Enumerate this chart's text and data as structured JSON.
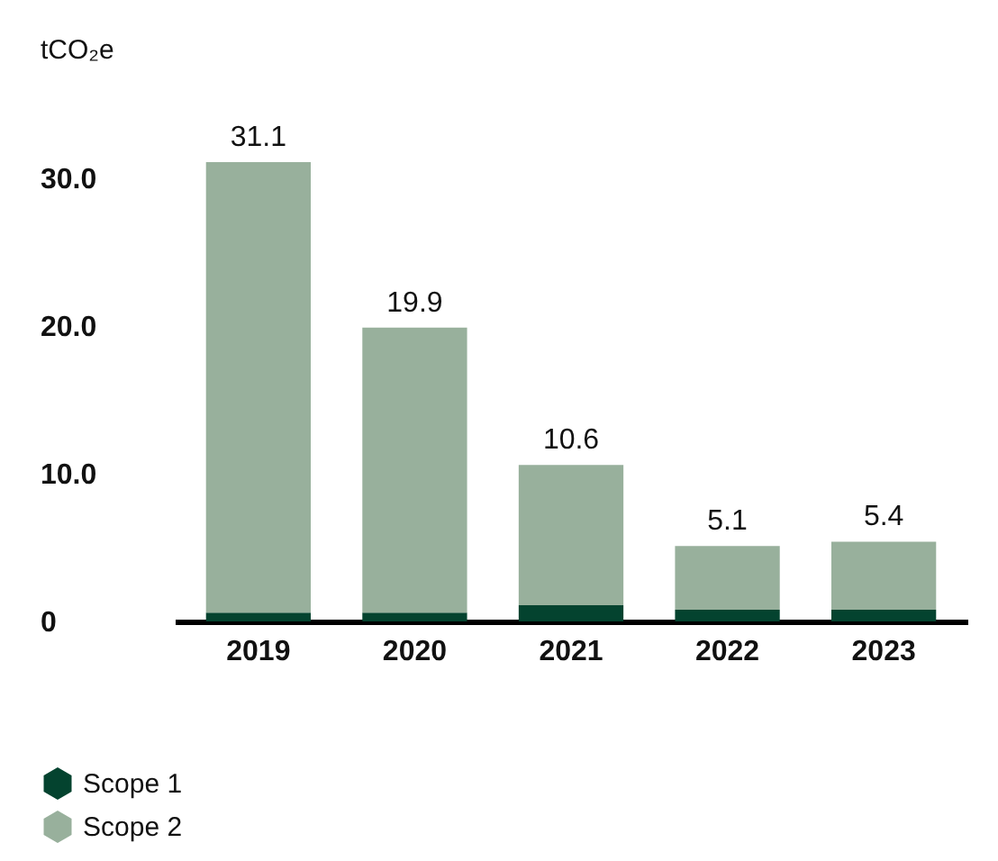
{
  "chart_data": {
    "type": "bar",
    "ylabel": "tCO₂e",
    "categories": [
      "2019",
      "2020",
      "2021",
      "2022",
      "2023"
    ],
    "stacked": true,
    "series": [
      {
        "name": "Scope 1",
        "color": "#04432f",
        "values": [
          0.6,
          0.6,
          1.1,
          0.8,
          0.8
        ]
      },
      {
        "name": "Scope 2",
        "color": "#98b09c",
        "values": [
          30.5,
          19.3,
          9.5,
          4.3,
          4.6
        ]
      }
    ],
    "totals": [
      "31.1",
      "19.9",
      "10.6",
      "5.1",
      "5.4"
    ],
    "ylim": [
      0,
      31.1
    ],
    "yticks": [
      0,
      {
        "value": 10,
        "label": "10.0"
      },
      {
        "value": 20,
        "label": "20.0"
      },
      {
        "value": 30,
        "label": "30.0"
      }
    ],
    "grid": false,
    "legend": "bottom left"
  }
}
